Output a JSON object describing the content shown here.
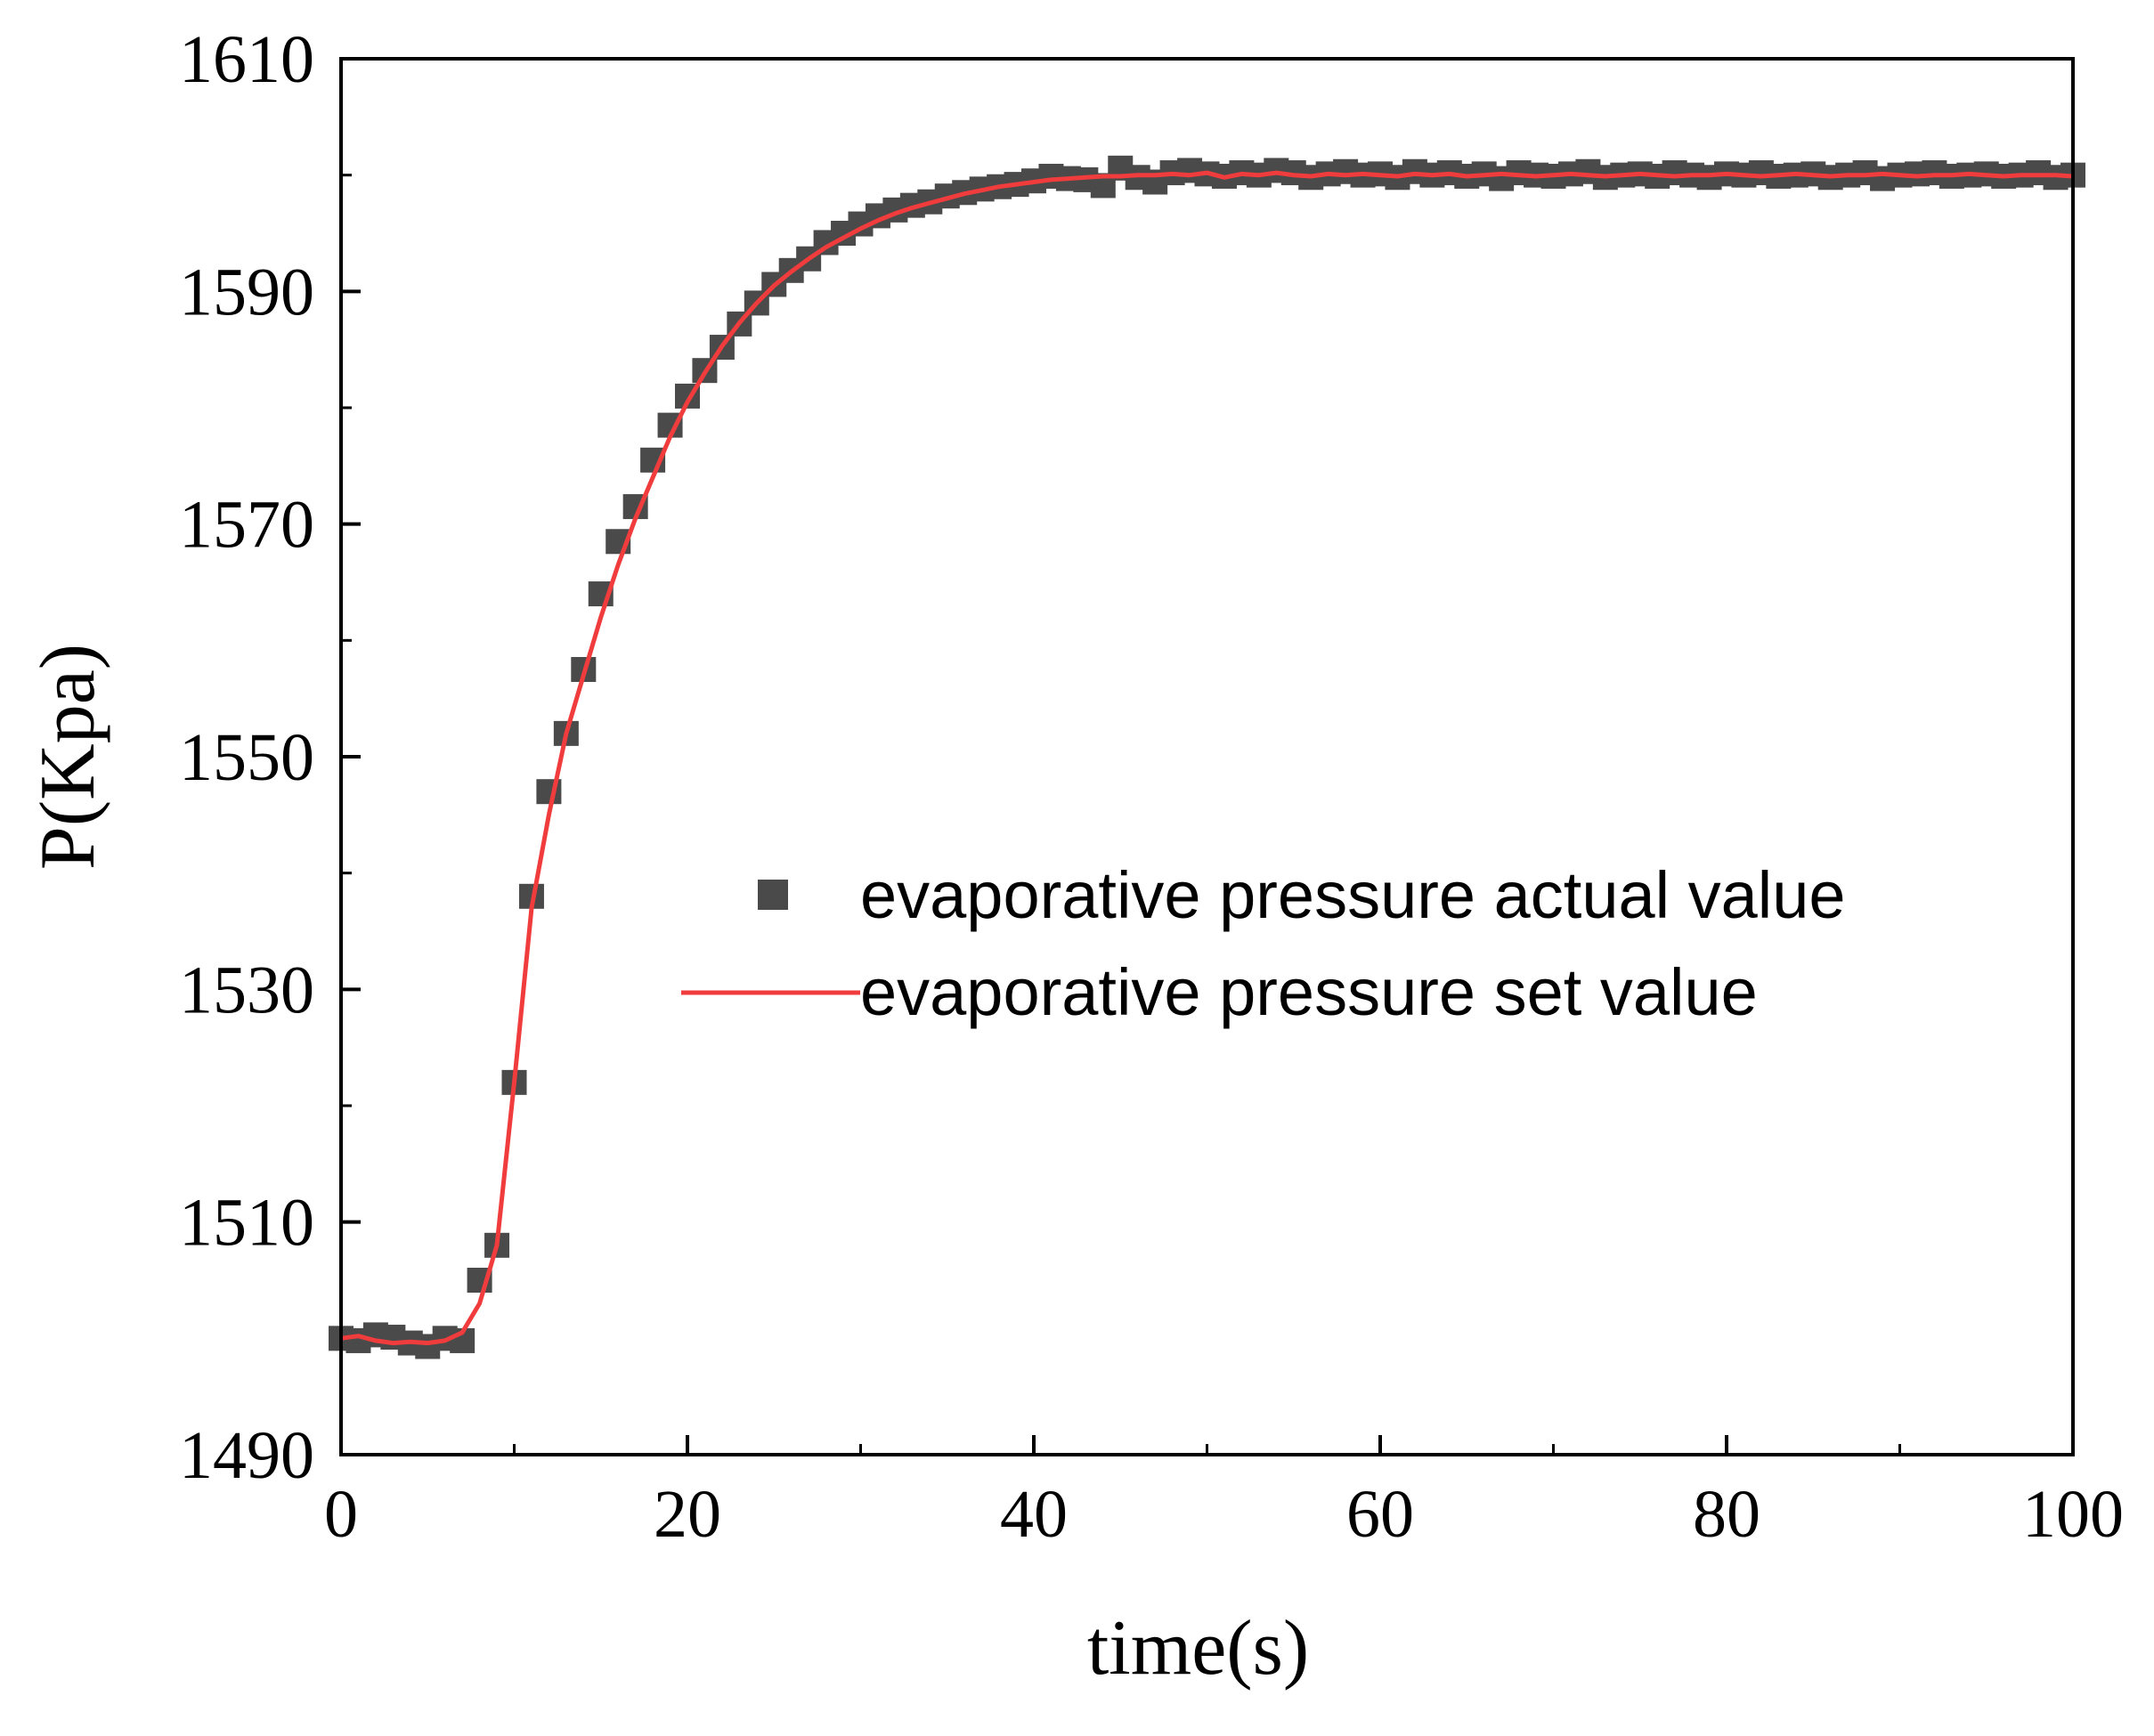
{
  "chart_data": {
    "type": "line+scatter",
    "xlabel": "time(s)",
    "ylabel": "P(Kpa)",
    "xlim": [
      0,
      100
    ],
    "ylim": [
      1490,
      1610
    ],
    "xticks": [
      0,
      20,
      40,
      60,
      80,
      100
    ],
    "xtick_labels": [
      "0",
      "20",
      "40",
      "60",
      "80",
      "100"
    ],
    "yticks": [
      1490,
      1510,
      1530,
      1550,
      1570,
      1590,
      1610
    ],
    "ytick_labels": [
      "1490",
      "1510",
      "1530",
      "1550",
      "1570",
      "1590",
      "1610"
    ],
    "grid": false,
    "legend_position": "center-right",
    "series": [
      {
        "name": "evaporative pressure actual value",
        "kind": "scatter",
        "marker": "square",
        "color": "#4a4a4a",
        "x": [
          0,
          1,
          2,
          3,
          4,
          5,
          6,
          7,
          8,
          9,
          10,
          11,
          12,
          13,
          14,
          15,
          16,
          17,
          18,
          19,
          20,
          21,
          22,
          23,
          24,
          25,
          26,
          27,
          28,
          29,
          30,
          31,
          32,
          33,
          34,
          35,
          36,
          37,
          38,
          39,
          40,
          41,
          42,
          43,
          44,
          45,
          46,
          47,
          48,
          49,
          50,
          51,
          52,
          53,
          54,
          55,
          56,
          57,
          58,
          59,
          60,
          61,
          62,
          63,
          64,
          65,
          66,
          67,
          68,
          69,
          70,
          71,
          72,
          73,
          74,
          75,
          76,
          77,
          78,
          79,
          80,
          81,
          82,
          83,
          84,
          85,
          86,
          87,
          88,
          89,
          90,
          91,
          92,
          93,
          94,
          95,
          96,
          97,
          98,
          99,
          100
        ],
        "y": [
          1500,
          1499.8,
          1500.3,
          1500.1,
          1499.6,
          1499.3,
          1500,
          1499.8,
          1505,
          1508,
          1522,
          1538,
          1547,
          1552,
          1557.5,
          1564,
          1568.5,
          1571.5,
          1575.5,
          1578.5,
          1581,
          1583.2,
          1585.2,
          1587.2,
          1589,
          1590.6,
          1591.8,
          1592.8,
          1594.2,
          1595,
          1595.8,
          1596.5,
          1597,
          1597.4,
          1597.7,
          1598.2,
          1598.5,
          1598.8,
          1599,
          1599.2,
          1599.5,
          1599.9,
          1599.7,
          1599.6,
          1599.1,
          1600.6,
          1599.8,
          1599.4,
          1600.2,
          1600.4,
          1600.1,
          1599.9,
          1600.2,
          1600.0,
          1600.4,
          1600.2,
          1599.8,
          1600.1,
          1600.3,
          1600.0,
          1600.1,
          1599.8,
          1600.3,
          1600.0,
          1600.2,
          1599.9,
          1600.1,
          1599.7,
          1600.2,
          1600.0,
          1599.9,
          1600.1,
          1600.3,
          1599.8,
          1600.0,
          1600.1,
          1599.9,
          1600.2,
          1600.0,
          1599.8,
          1600.1,
          1600.0,
          1600.2,
          1599.9,
          1600.0,
          1600.1,
          1599.8,
          1600.0,
          1600.2,
          1599.7,
          1600.0,
          1600.1,
          1600.2,
          1599.9,
          1600.0,
          1600.1,
          1599.9,
          1600.0,
          1600.2,
          1599.8,
          1600.0
        ]
      },
      {
        "name": "evaporative pressure set value",
        "kind": "line",
        "color": "#f03c3c",
        "x": [
          0,
          1,
          2,
          3,
          4,
          5,
          6,
          7,
          8,
          9,
          10,
          11,
          12,
          13,
          14,
          15,
          16,
          17,
          18,
          19,
          20,
          21,
          22,
          23,
          24,
          25,
          26,
          27,
          28,
          29,
          30,
          31,
          32,
          33,
          34,
          35,
          36,
          37,
          38,
          39,
          40,
          41,
          42,
          43,
          44,
          45,
          46,
          47,
          48,
          49,
          50,
          51,
          52,
          53,
          54,
          55,
          56,
          57,
          58,
          59,
          60,
          61,
          62,
          63,
          64,
          65,
          66,
          67,
          68,
          69,
          70,
          71,
          72,
          73,
          74,
          75,
          76,
          77,
          78,
          79,
          80,
          81,
          82,
          83,
          84,
          85,
          86,
          87,
          88,
          89,
          90,
          91,
          92,
          93,
          94,
          95,
          96,
          97,
          98,
          99,
          100
        ],
        "y": [
          1500,
          1500.2,
          1499.8,
          1499.6,
          1499.7,
          1499.6,
          1499.8,
          1500.5,
          1503,
          1508,
          1522,
          1537,
          1545,
          1552,
          1557,
          1562,
          1566.5,
          1570.5,
          1574,
          1577.5,
          1580.5,
          1583,
          1585.3,
          1587.3,
          1589,
          1590.5,
          1591.7,
          1592.8,
          1593.8,
          1594.6,
          1595.4,
          1596.1,
          1596.7,
          1597.2,
          1597.6,
          1598.0,
          1598.4,
          1598.7,
          1599.0,
          1599.2,
          1599.4,
          1599.6,
          1599.7,
          1599.8,
          1599.9,
          1599.9,
          1600.0,
          1600.0,
          1600.1,
          1600.0,
          1600.2,
          1599.8,
          1600.1,
          1600.0,
          1600.2,
          1600.0,
          1599.9,
          1600.1,
          1600.0,
          1600.1,
          1600.0,
          1599.9,
          1600.1,
          1600.0,
          1600.1,
          1599.9,
          1600.0,
          1600.1,
          1600.0,
          1599.9,
          1600.0,
          1600.1,
          1600.0,
          1599.9,
          1600.0,
          1600.1,
          1600.0,
          1599.9,
          1600.0,
          1600.0,
          1600.1,
          1600.0,
          1599.9,
          1600.0,
          1600.1,
          1600.0,
          1599.9,
          1600.0,
          1600.0,
          1600.1,
          1600.0,
          1599.9,
          1600.0,
          1600.0,
          1600.1,
          1600.0,
          1599.9,
          1600.0,
          1600.0,
          1600.0,
          1599.9
        ]
      }
    ]
  }
}
